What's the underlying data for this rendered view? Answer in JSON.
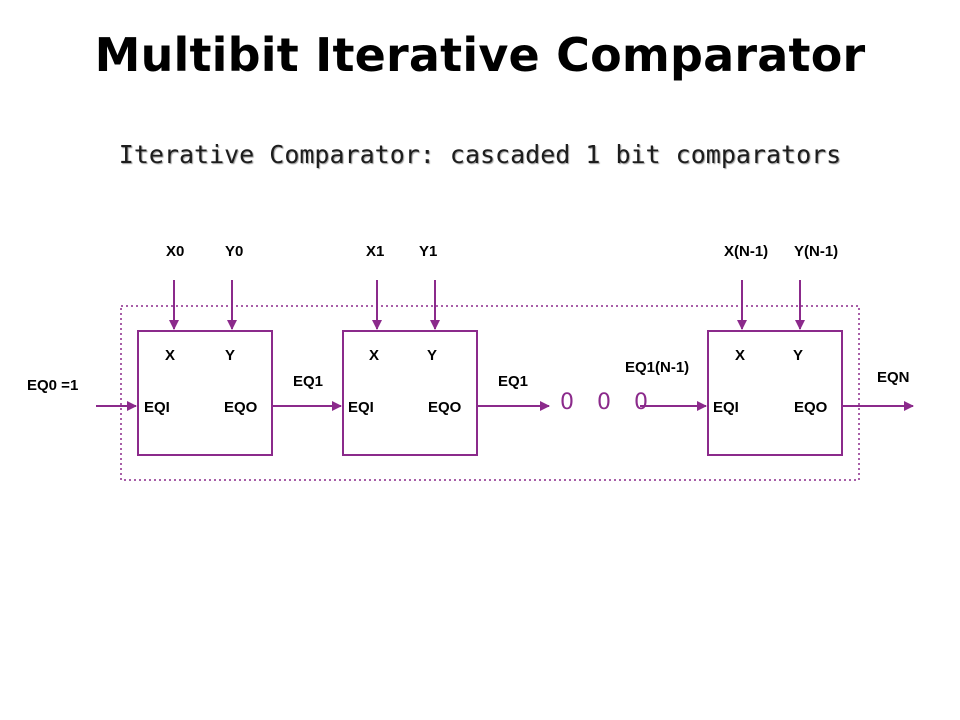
{
  "title": "Multibit Iterative Comparator",
  "subtitle": "Iterative Comparator: cascaded 1 bit comparators",
  "colors": {
    "wire": "#8b2a8b",
    "box": "#8b2a8b",
    "text": "#000000"
  },
  "inputs": {
    "x0": "X0",
    "y0": "Y0",
    "x1": "X1",
    "y1": "Y1",
    "xn": "X(N-1)",
    "yn": "Y(N-1)"
  },
  "cell": {
    "x_port": "X",
    "y_port": "Y",
    "eqi_port": "EQI",
    "eqo_port": "EQO"
  },
  "signals": {
    "eq0": "EQ0 =1",
    "eq1_a": "EQ1",
    "eq1_b": "EQ1",
    "eq1_n": "EQ1(N-1)",
    "eqn": "EQN"
  },
  "ellipsis": "0 0 0"
}
